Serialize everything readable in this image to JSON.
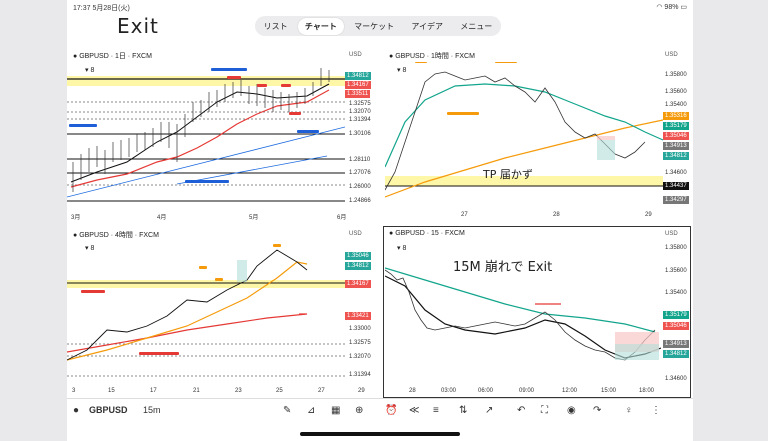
{
  "status": {
    "time": "17:37",
    "date": "5月28日(火)",
    "battery": "98%"
  },
  "note_exit": "Exit",
  "nav": {
    "items": [
      "リスト",
      "チャート",
      "マーケット",
      "アイデア",
      "メニュー"
    ]
  },
  "panels": {
    "daily": {
      "title": "GBPUSD · 1日 · FXCM",
      "currency": "USD",
      "count": "8",
      "tags": [
        {
          "text": "1.34812",
          "color": "#26a69a"
        },
        {
          "text": "1.34167",
          "color": "#ef5350"
        },
        {
          "text": "1.33511",
          "color": "#ef5350"
        }
      ],
      "prices": [
        "1.32575",
        "1.32070",
        "1.31394",
        "1.30106",
        "1.28110",
        "1.27076",
        "1.26000",
        "1.24866"
      ],
      "dates": [
        "3月",
        "4月",
        "5月",
        "6月"
      ]
    },
    "h1": {
      "title": "GBPUSD · 1時間 · FXCM",
      "currency": "USD",
      "count": "8",
      "prices": [
        "1.35800",
        "1.35600",
        "1.35400",
        "1.35316",
        "1.35179",
        "1.35046",
        "1.34913",
        "1.34812",
        "1.34600",
        "1.34437",
        "1.34297"
      ],
      "dates": [
        "27",
        "28",
        "29"
      ],
      "note": "TP 届かず"
    },
    "h4": {
      "title": "GBPUSD · 4時間 · FXCM",
      "currency": "USD",
      "count": "8",
      "prices": [
        "1.35046",
        "1.34812",
        "1.34167",
        "1.33421",
        "1.33000",
        "1.32575",
        "1.32070",
        "1.31394"
      ],
      "dates": [
        "3",
        "15",
        "17",
        "21",
        "23",
        "25",
        "27",
        "29"
      ]
    },
    "m15": {
      "title": "GBPUSD · 15 · FXCM",
      "currency": "USD",
      "count": "8",
      "prices": [
        "1.35800",
        "1.35600",
        "1.35400",
        "1.35179",
        "1.35046",
        "1.34913",
        "1.34812",
        "1.34600"
      ],
      "dates": [
        "28",
        "03:00",
        "06:00",
        "09:00",
        "12:00",
        "15:00",
        "18:00"
      ],
      "note": "15M 崩れで Exit"
    }
  },
  "bottom": {
    "symbol": "GBPUSD",
    "timeframe": "15m"
  }
}
